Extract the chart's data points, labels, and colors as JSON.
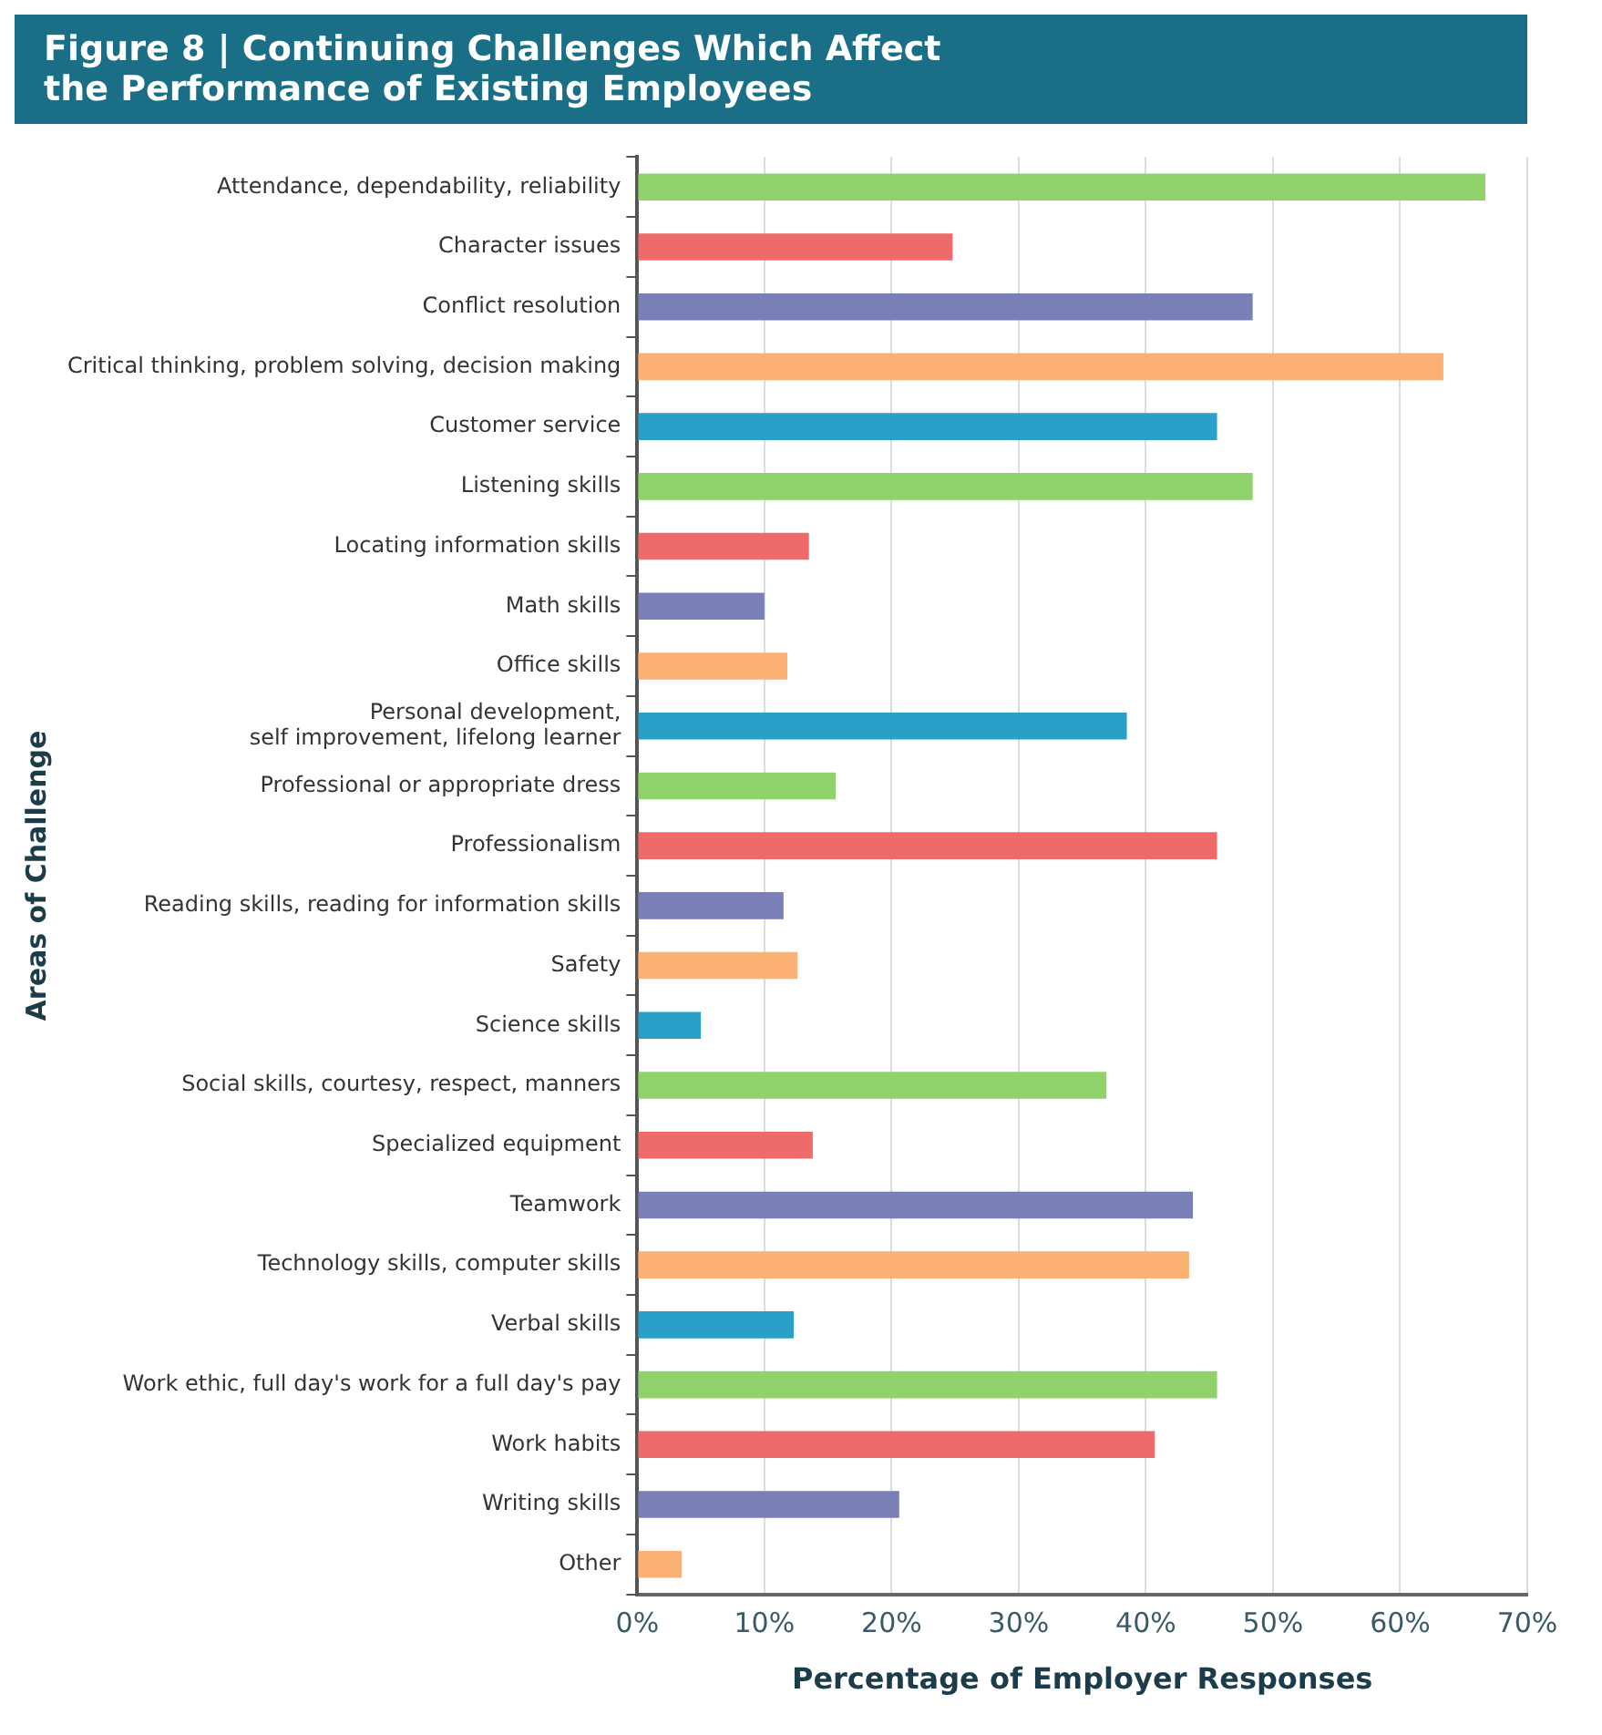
{
  "chart_data": {
    "type": "bar",
    "orientation": "horizontal",
    "title": "Figure 8 | Continuing Challenges Which Affect\nthe Performance of Existing Employees",
    "xlabel": "Percentage of Employer Responses",
    "ylabel": "Areas of Challenge",
    "categories": [
      "Attendance, dependability, reliability",
      "Character issues",
      "Conflict resolution",
      "Critical thinking, problem solving, decision making",
      "Customer service",
      "Listening skills",
      "Locating information skills",
      "Math skills",
      "Office skills",
      "Personal development,\nself improvement, lifelong learner",
      "Professional or appropriate dress",
      "Professionalism",
      "Reading skills, reading for information skills",
      "Safety",
      "Science skills",
      "Social skills, courtesy, respect, manners",
      "Specialized equipment",
      "Teamwork",
      "Technology skills, computer skills",
      "Verbal skills",
      "Work ethic, full day's work for a full day's pay",
      "Work habits",
      "Writing skills",
      "Other"
    ],
    "values": [
      66.7,
      24.8,
      48.4,
      63.4,
      45.6,
      48.4,
      13.5,
      10,
      11.8,
      38.5,
      15.6,
      45.6,
      11.5,
      12.6,
      5,
      36.9,
      13.8,
      43.7,
      43.4,
      12.3,
      45.6,
      40.7,
      20.6,
      3.5
    ],
    "colors": [
      "#8fd16a",
      "#ef6b6b",
      "#7b7fb8",
      "#fbb173",
      "#2aa0c8",
      "#8fd16a",
      "#ef6b6b",
      "#7b7fb8",
      "#fbb173",
      "#2aa0c8",
      "#8fd16a",
      "#ef6b6b",
      "#7b7fb8",
      "#fbb173",
      "#2aa0c8",
      "#8fd16a",
      "#ef6b6b",
      "#7b7fb8",
      "#fbb173",
      "#2aa0c8",
      "#8fd16a",
      "#ef6b6b",
      "#7b7fb8",
      "#fbb173"
    ],
    "xlim": [
      0,
      70
    ],
    "xticks": [
      {
        "value": 0,
        "label": "0%"
      },
      {
        "value": 10,
        "label": "10%"
      },
      {
        "value": 20,
        "label": "20%"
      },
      {
        "value": 30,
        "label": "30%"
      },
      {
        "value": 40,
        "label": "40%"
      },
      {
        "value": 50,
        "label": "50%"
      },
      {
        "value": 60,
        "label": "60%"
      },
      {
        "value": 70,
        "label": "70%"
      }
    ],
    "grid": "x",
    "legend": false
  }
}
